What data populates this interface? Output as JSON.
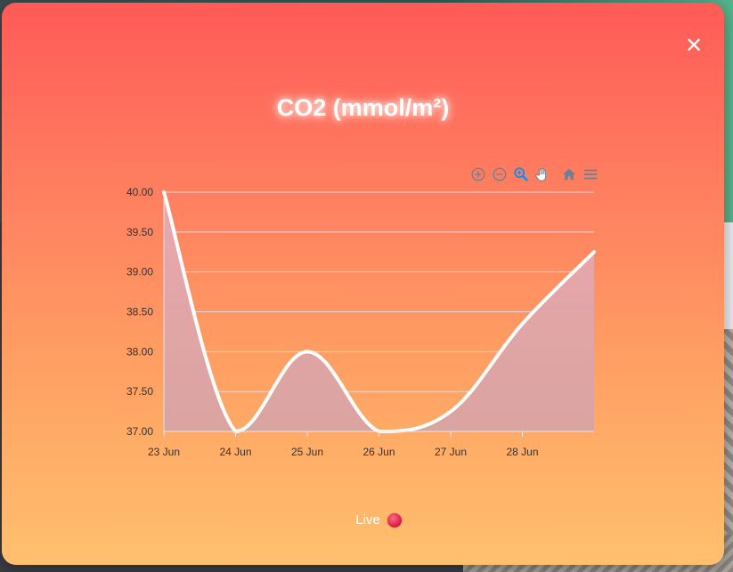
{
  "modal": {
    "close_label": "✕",
    "live_label": "Live"
  },
  "toolbar": {
    "tools": [
      {
        "name": "zoom-in-icon"
      },
      {
        "name": "zoom-out-icon"
      },
      {
        "name": "selection-zoom-icon"
      },
      {
        "name": "pan-icon"
      },
      {
        "name": "reset-zoom-home-icon"
      },
      {
        "name": "menu-icon"
      }
    ]
  },
  "colors": {
    "line": "#ffffff",
    "grid": "#f2d6d6",
    "toolbar_icon": "#6e8192",
    "toolbar_active": "#008ffb"
  },
  "chart_data": {
    "type": "area",
    "title": "CO2 (mmol/m²)",
    "xlabel": "",
    "ylabel": "",
    "ylim": [
      37.0,
      40.0
    ],
    "yticks": [
      "40.00",
      "39.50",
      "39.00",
      "38.50",
      "38.00",
      "37.50",
      "37.00"
    ],
    "xticks": [
      "23 Jun",
      "24 Jun",
      "25 Jun",
      "26 Jun",
      "27 Jun",
      "28 Jun"
    ],
    "x": [
      0,
      1,
      2,
      3,
      4,
      5,
      6
    ],
    "values": [
      40.0,
      37.0,
      38.0,
      37.0,
      37.25,
      38.35,
      39.25
    ],
    "grid": true,
    "legend": "none"
  }
}
